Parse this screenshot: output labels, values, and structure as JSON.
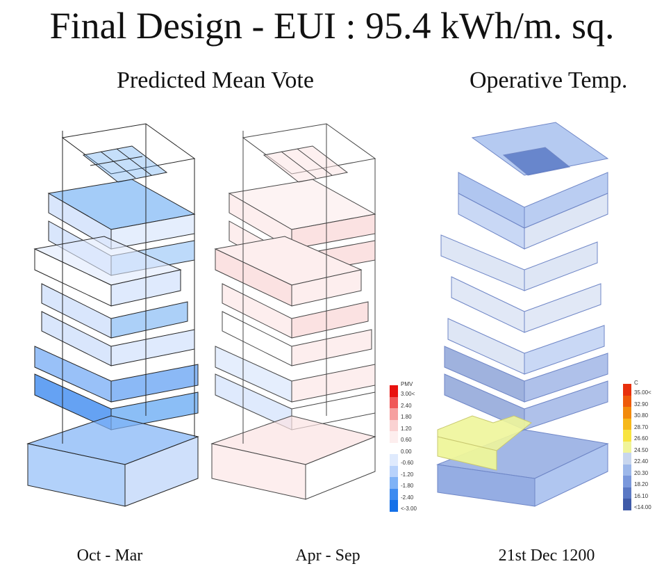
{
  "title": "Final Design - EUI : 95.4 kWh/m. sq.",
  "subtitles": {
    "left": "Predicted Mean Vote",
    "right": "Operative Temp."
  },
  "captions": [
    "Oct - Mar",
    "Apr - Sep",
    "21st Dec 1200"
  ],
  "pmv_legend": {
    "heading": "PMV",
    "labels": [
      "3.00<",
      "2.40",
      "1.80",
      "1.20",
      "0.60",
      "0.00",
      "-0.60",
      "-1.20",
      "-1.80",
      "-2.40",
      "<-3.00"
    ],
    "colors": [
      "#e8120f",
      "#f05858",
      "#f6a0a0",
      "#fad2d2",
      "#fdeeee",
      "#ffffff",
      "#dfeafd",
      "#b8d2fb",
      "#7fb2f6",
      "#3e8bf0",
      "#1470e8"
    ]
  },
  "temp_legend": {
    "heading": "C",
    "labels": [
      "35.00<",
      "32.90",
      "30.80",
      "28.70",
      "26.60",
      "24.50",
      "22.40",
      "20.30",
      "18.20",
      "16.10",
      "<14.00"
    ],
    "colors": [
      "#e8300c",
      "#ee5a0a",
      "#f28a0c",
      "#f6b81a",
      "#f8e440",
      "#f0f49a",
      "#c8d6ee",
      "#9db8ea",
      "#7a98dc",
      "#5a78c4",
      "#3f5aa8"
    ]
  },
  "colors": {
    "pmv_cool": "#5aa2f2",
    "pmv_light": "#cfe0fb",
    "pmv_warm": "#fbe2e2",
    "temp_blue": "#9cb8ec",
    "temp_dark": "#5f7ec8",
    "temp_yellow": "#eef59a"
  }
}
